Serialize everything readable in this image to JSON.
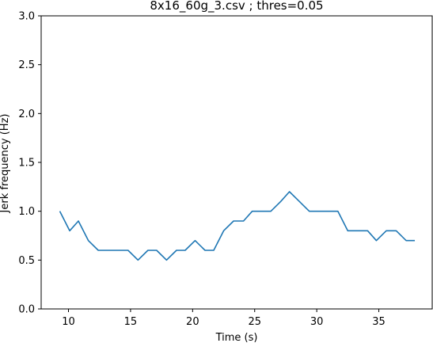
{
  "chart_data": {
    "type": "line",
    "title": "8x16_60g_3.csv ; thres=0.05",
    "xlabel": "Time (s)",
    "ylabel": "Jerk frequency (Hz)",
    "xlim": [
      7.8,
      39.3
    ],
    "ylim": [
      0.0,
      3.0
    ],
    "xticks": [
      10,
      15,
      20,
      25,
      30,
      35
    ],
    "xtick_labels": [
      "10",
      "15",
      "20",
      "25",
      "30",
      "35"
    ],
    "yticks": [
      0.0,
      0.5,
      1.0,
      1.5,
      2.0,
      2.5,
      3.0
    ],
    "ytick_labels": [
      "0.0",
      "0.5",
      "1.0",
      "1.5",
      "2.0",
      "2.5",
      "3.0"
    ],
    "grid": false,
    "series": [
      {
        "color": "#1f77b4",
        "x": [
          9.3,
          10.1,
          10.8,
          11.6,
          12.4,
          13.2,
          14.0,
          14.8,
          15.6,
          16.4,
          17.1,
          17.9,
          18.7,
          19.4,
          20.2,
          21.0,
          21.7,
          22.5,
          23.3,
          24.1,
          24.8,
          25.6,
          26.3,
          27.1,
          27.8,
          28.6,
          29.4,
          30.2,
          30.9,
          31.7,
          32.5,
          33.3,
          34.1,
          34.8,
          35.6,
          36.4,
          37.2,
          37.9
        ],
        "y": [
          1.0,
          0.8,
          0.9,
          0.7,
          0.6,
          0.6,
          0.6,
          0.6,
          0.5,
          0.6,
          0.6,
          0.5,
          0.6,
          0.6,
          0.7,
          0.6,
          0.6,
          0.8,
          0.9,
          0.9,
          1.0,
          1.0,
          1.0,
          1.1,
          1.2,
          1.1,
          1.0,
          1.0,
          1.0,
          1.0,
          0.8,
          0.8,
          0.8,
          0.7,
          0.8,
          0.8,
          0.7,
          0.7
        ]
      }
    ]
  }
}
